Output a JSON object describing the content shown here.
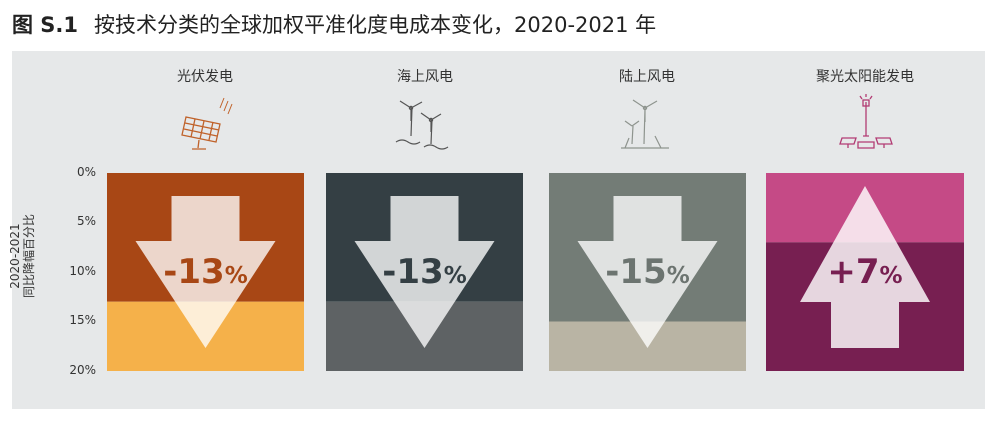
{
  "title": {
    "figure": "图 S.1",
    "text": "按技术分类的全球加权平准化度电成本变化，2020-2021 年"
  },
  "chart_data": {
    "type": "bar",
    "ylabel_line1": "2020-2021",
    "ylabel_line2": "同比降幅百分比",
    "ylim": [
      0,
      20
    ],
    "yticks": [
      "0%",
      "5%",
      "10%",
      "15%",
      "20%"
    ],
    "categories": [
      "光伏发电",
      "海上风电",
      "陆上风电",
      "聚光太阳能发电"
    ],
    "values": [
      -13,
      -13,
      -15,
      7
    ],
    "data_labels": [
      "-13%",
      "-13%",
      "-15%",
      "+7%"
    ],
    "icons": [
      "solar-panel-icon",
      "offshore-wind-icon",
      "onshore-wind-icon",
      "csp-tower-icon"
    ],
    "colors": {
      "top": [
        "#a84715",
        "#343f44",
        "#737c76",
        "#c54a86"
      ],
      "bottom": [
        "#f5b14a",
        "#5e6264",
        "#b9b4a4",
        "#771f51"
      ],
      "label": [
        "#a84715",
        "#343f44",
        "#6c7470",
        "#771f51"
      ],
      "arrow": "#ffffff"
    }
  }
}
